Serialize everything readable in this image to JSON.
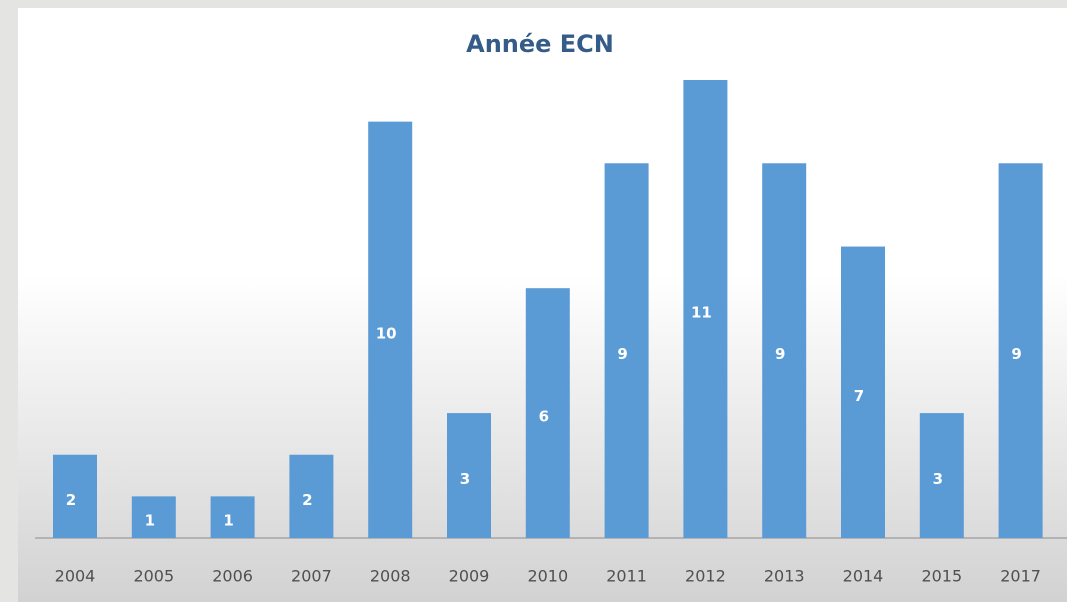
{
  "chart_data": {
    "type": "bar",
    "title": "Année ECN",
    "categories": [
      "2004",
      "2005",
      "2006",
      "2007",
      "2008",
      "2009",
      "2010",
      "2011",
      "2012",
      "2013",
      "2014",
      "2015",
      "2017"
    ],
    "values": [
      2,
      1,
      1,
      2,
      10,
      3,
      6,
      9,
      11,
      9,
      7,
      3,
      9
    ],
    "color": "#5b9bd5"
  }
}
